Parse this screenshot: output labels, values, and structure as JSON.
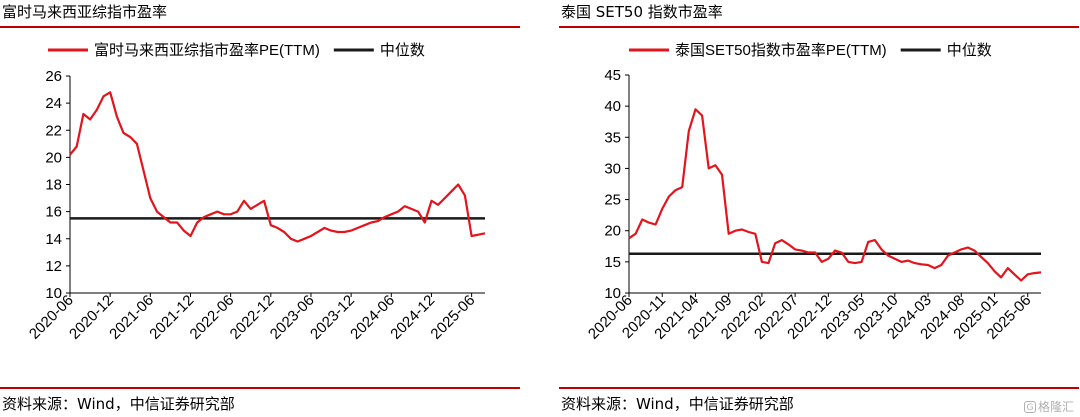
{
  "source_label": "资料来源：Wind，中信证券研究部",
  "watermark": {
    "icon": "G",
    "text": "格隆汇"
  },
  "chart_data": [
    {
      "type": "line",
      "title": "富时马来西亚综指市盈率",
      "xlabel": "",
      "ylabel": "",
      "ylim": [
        10,
        26
      ],
      "yticks": [
        10,
        12,
        14,
        16,
        18,
        20,
        22,
        24,
        26
      ],
      "x_range": [
        "2020-06",
        "2025-08"
      ],
      "xticks": [
        "2020-06",
        "2020-12",
        "2021-06",
        "2021-12",
        "2022-06",
        "2022-12",
        "2023-06",
        "2023-12",
        "2024-06",
        "2024-12",
        "2025-06"
      ],
      "grid": false,
      "legend_position": "top",
      "colors": {
        "series": "#e3141b",
        "median": "#1a1a1a"
      },
      "series": [
        {
          "name": "富时马来西亚综指市盈率PE(TTM)",
          "x": [
            "2020-06",
            "2020-07",
            "2020-08",
            "2020-09",
            "2020-10",
            "2020-11",
            "2020-12",
            "2021-01",
            "2021-02",
            "2021-03",
            "2021-04",
            "2021-05",
            "2021-06",
            "2021-07",
            "2021-08",
            "2021-09",
            "2021-10",
            "2021-11",
            "2021-12",
            "2022-01",
            "2022-02",
            "2022-03",
            "2022-04",
            "2022-05",
            "2022-06",
            "2022-07",
            "2022-08",
            "2022-09",
            "2022-10",
            "2022-11",
            "2022-12",
            "2023-01",
            "2023-02",
            "2023-03",
            "2023-04",
            "2023-05",
            "2023-06",
            "2023-07",
            "2023-08",
            "2023-09",
            "2023-10",
            "2023-11",
            "2023-12",
            "2024-01",
            "2024-02",
            "2024-03",
            "2024-04",
            "2024-05",
            "2024-06",
            "2024-07",
            "2024-08",
            "2024-09",
            "2024-10",
            "2024-11",
            "2024-12",
            "2025-01",
            "2025-02",
            "2025-03",
            "2025-04",
            "2025-05",
            "2025-06",
            "2025-07",
            "2025-08"
          ],
          "values": [
            20.2,
            20.8,
            23.2,
            22.8,
            23.5,
            24.5,
            24.8,
            23.0,
            21.8,
            21.5,
            21.0,
            19.0,
            17.0,
            16.0,
            15.6,
            15.2,
            15.2,
            14.6,
            14.2,
            15.2,
            15.6,
            15.8,
            16.0,
            15.8,
            15.8,
            16.0,
            16.8,
            16.2,
            16.5,
            16.8,
            15.0,
            14.8,
            14.5,
            14.0,
            13.8,
            14.0,
            14.2,
            14.5,
            14.8,
            14.6,
            14.5,
            14.5,
            14.6,
            14.8,
            15.0,
            15.2,
            15.3,
            15.6,
            15.8,
            16.0,
            16.4,
            16.2,
            16.0,
            15.2,
            16.8,
            16.5,
            17.0,
            17.5,
            18.0,
            17.2,
            14.2,
            14.3,
            14.4
          ]
        },
        {
          "name": "中位数",
          "x": [
            "2020-06",
            "2025-08"
          ],
          "values": [
            15.5,
            15.5
          ]
        }
      ]
    },
    {
      "type": "line",
      "title": "泰国 SET50 指数市盈率",
      "xlabel": "",
      "ylabel": "",
      "ylim": [
        10,
        45
      ],
      "yticks": [
        10,
        15,
        20,
        25,
        30,
        35,
        40,
        45
      ],
      "x_range": [
        "2020-06",
        "2025-08"
      ],
      "xticks": [
        "2020-06",
        "2020-11",
        "2021-04",
        "2021-09",
        "2022-02",
        "2022-07",
        "2022-12",
        "2023-05",
        "2023-10",
        "2024-03",
        "2024-08",
        "2025-01",
        "2025-06"
      ],
      "grid": false,
      "legend_position": "top",
      "colors": {
        "series": "#e3141b",
        "median": "#1a1a1a"
      },
      "series": [
        {
          "name": "泰国SET50指数市盈率PE(TTM)",
          "x": [
            "2020-06",
            "2020-07",
            "2020-08",
            "2020-09",
            "2020-10",
            "2020-11",
            "2020-12",
            "2021-01",
            "2021-02",
            "2021-03",
            "2021-04",
            "2021-05",
            "2021-06",
            "2021-07",
            "2021-08",
            "2021-09",
            "2021-10",
            "2021-11",
            "2021-12",
            "2022-01",
            "2022-02",
            "2022-03",
            "2022-04",
            "2022-05",
            "2022-06",
            "2022-07",
            "2022-08",
            "2022-09",
            "2022-10",
            "2022-11",
            "2022-12",
            "2023-01",
            "2023-02",
            "2023-03",
            "2023-04",
            "2023-05",
            "2023-06",
            "2023-07",
            "2023-08",
            "2023-09",
            "2023-10",
            "2023-11",
            "2023-12",
            "2024-01",
            "2024-02",
            "2024-03",
            "2024-04",
            "2024-05",
            "2024-06",
            "2024-07",
            "2024-08",
            "2024-09",
            "2024-10",
            "2024-11",
            "2024-12",
            "2025-01",
            "2025-02",
            "2025-03",
            "2025-04",
            "2025-05",
            "2025-06",
            "2025-07",
            "2025-08"
          ],
          "values": [
            18.8,
            19.5,
            21.8,
            21.3,
            21.0,
            23.5,
            25.5,
            26.5,
            27.0,
            36.0,
            39.5,
            38.5,
            30.0,
            30.5,
            29.0,
            19.5,
            20.0,
            20.2,
            19.8,
            19.5,
            15.0,
            14.8,
            18.0,
            18.5,
            17.8,
            17.0,
            16.8,
            16.5,
            16.5,
            15.0,
            15.5,
            16.8,
            16.5,
            15.0,
            14.8,
            15.0,
            18.2,
            18.5,
            17.0,
            16.0,
            15.5,
            15.0,
            15.2,
            14.8,
            14.6,
            14.5,
            14.0,
            14.5,
            16.0,
            16.5,
            17.0,
            17.3,
            16.8,
            15.8,
            14.8,
            13.5,
            12.5,
            14.0,
            13.0,
            12.0,
            13.0,
            13.2,
            13.3
          ]
        },
        {
          "name": "中位数",
          "x": [
            "2020-06",
            "2025-08"
          ],
          "values": [
            16.3,
            16.3
          ]
        }
      ]
    }
  ]
}
